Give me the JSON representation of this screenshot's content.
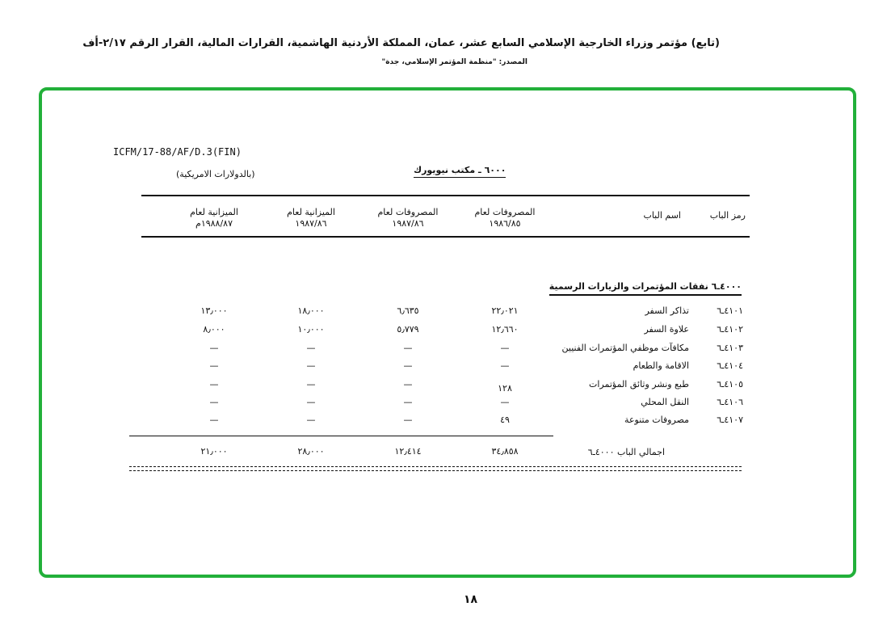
{
  "header": {
    "title": "(تابع) مؤتمر وزراء الخارجية الإسلامي السابع عشر، عمان، المملكة الأردنية الهاشمية، القرارات المالية، القرار الرقم ٢/١٧-أف",
    "source": "المصدر: \"منظمة المؤتمر الإسلامي، جدة\""
  },
  "document": {
    "reference": "ICFM/17-88/AF/D.3(FIN)",
    "currency_note": "(بالدولارات الامريكية)",
    "office": "٦٠٠٠ ـ مكتب نيويورك"
  },
  "table": {
    "columns": [
      "رمز الباب",
      "اسم الباب",
      "المصروفات لعام ١٩٨٦/٨٥",
      "المصروفات لعام ١٩٨٧/٨٦",
      "الميزانية لعام ١٩٨٧/٨٦",
      "الميزانية لعام ١٩٨٨/٨٧م"
    ],
    "col_heads": [
      {
        "l1": "المصروفات لعام",
        "l2": "١٩٨٦/٨٥"
      },
      {
        "l1": "المصروفات لعام",
        "l2": "١٩٨٧/٨٦"
      },
      {
        "l1": "الميزانية لعام",
        "l2": "١٩٨٧/٨٦"
      },
      {
        "l1": "الميزانية لعام",
        "l2": "١٩٨٨/٨٧م"
      }
    ],
    "section": "٤٠٠٠ـ٦ نفقات المؤتمرات والزيارات الرسمية",
    "rows": [
      {
        "code": "٤١٠١ـ٦",
        "name": "تذاكر السفر",
        "v": [
          "٢٢٫٠٢١",
          "٦٫٦٣٥",
          "١٨٫٠٠٠",
          "١٣٫٠٠٠"
        ]
      },
      {
        "code": "٤١٠٢ـ٦",
        "name": "علاوة السفر",
        "v": [
          "١٢٫٦٦٠",
          "٥٫٧٧٩",
          "١٠٫٠٠٠",
          "٨٫٠٠٠"
        ]
      },
      {
        "code": "٤١٠٣ـ٦",
        "name": "مكافآت موظفي المؤتمرات الفنيين",
        "v": [
          "—",
          "—",
          "—",
          "—"
        ]
      },
      {
        "code": "٤١٠٤ـ٦",
        "name": "الاقامة والطعام",
        "v": [
          "—",
          "—",
          "—",
          "—"
        ]
      },
      {
        "code": "٤١٠٥ـ٦",
        "name": "طبع ونشر وثائق المؤتمرات",
        "v": [
          "١٢٨",
          "—",
          "—",
          "—"
        ]
      },
      {
        "code": "٤١٠٦ـ٦",
        "name": "النقل المحلي",
        "v": [
          "—",
          "—",
          "—",
          "—"
        ]
      },
      {
        "code": "٤١٠٧ـ٦",
        "name": "مصروفات متنوعة",
        "v": [
          "٤٩",
          "—",
          "—",
          "—"
        ]
      }
    ],
    "total": {
      "label": "اجمالي الباب ٤٠٠٠ـ٦",
      "v": [
        "٣٤٫٨٥٨",
        "١٢٫٤١٤",
        "٢٨٫٠٠٠",
        "٢١٫٠٠٠"
      ]
    }
  },
  "page_number": "١٨",
  "colors": {
    "frame": "#22b03a"
  }
}
